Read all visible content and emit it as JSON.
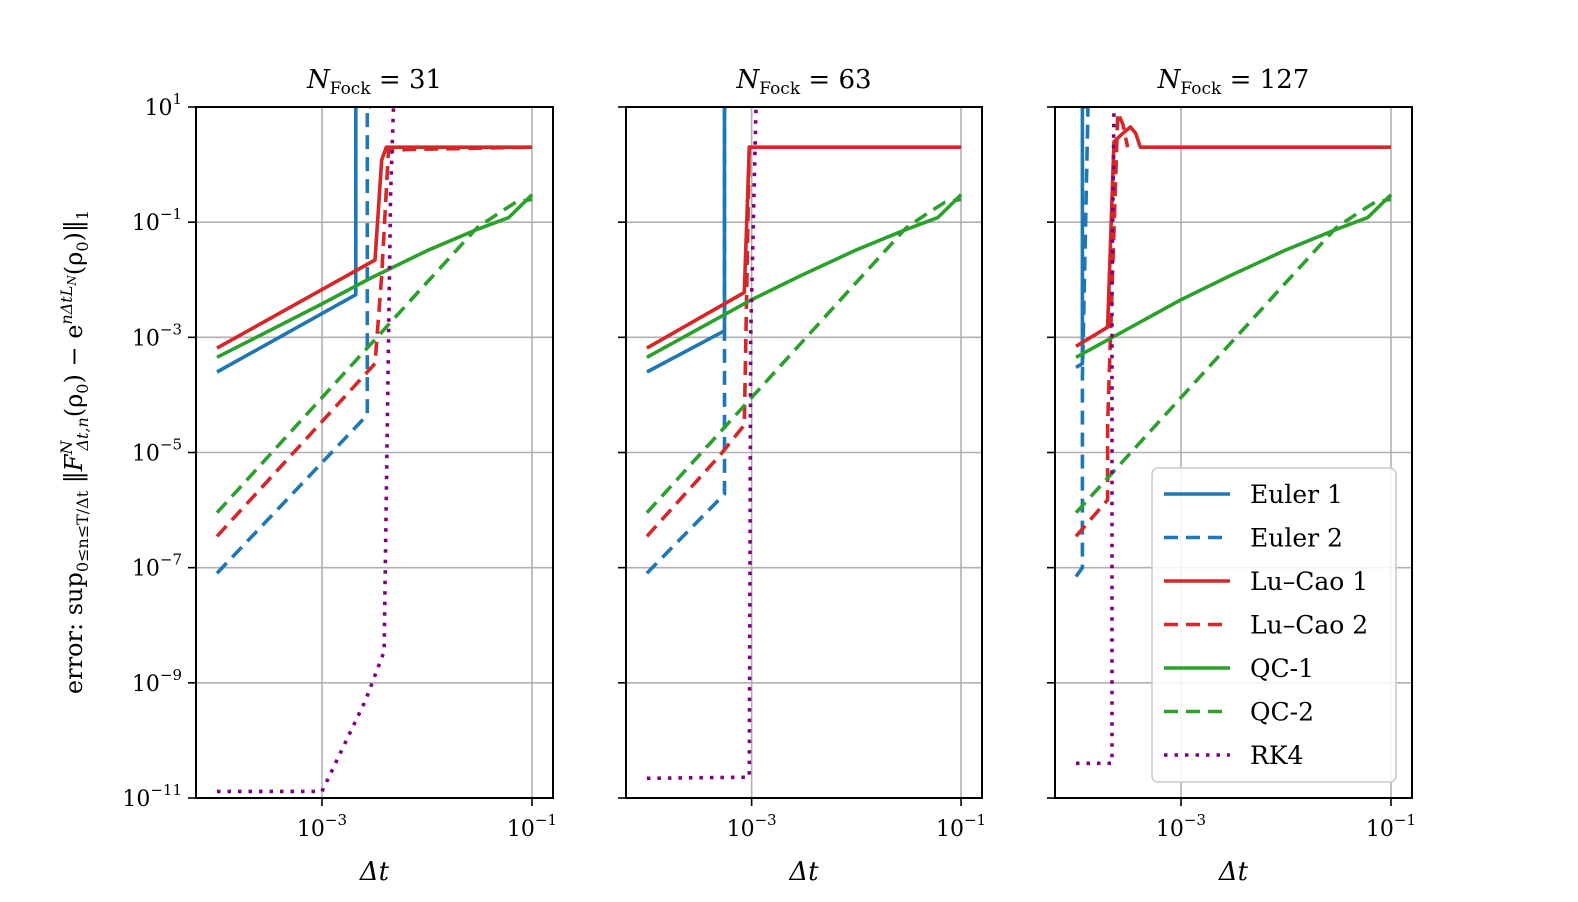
{
  "figure": {
    "ylabel": "error: sup_{0≤n≤T/Δt} ‖F^N_{Δt,n}(ρ0) − e^{nΔtL_N}(ρ0)‖_1",
    "ylabel_parts": {
      "prefix": "error: sup",
      "sub": "0≤n≤T/Δt",
      "norm_open": " ‖",
      "F": "F",
      "F_sup": "N",
      "F_sub": "Δt,n",
      "mid": "(ρ",
      "rho_sub": "0",
      "minus": ") − e",
      "exp_sup": "nΔtL",
      "exp_sub": "N",
      "tail": "(ρ",
      "tail_sub": "0",
      "close": ")‖",
      "norm_sub": "1"
    }
  },
  "chart_data": [
    {
      "type": "line",
      "title": "N_Fock = 31",
      "title_main": "N",
      "title_sub": "Fock",
      "title_rest": " = 31",
      "xlabel": "Δt",
      "xscale": "log",
      "yscale": "log",
      "xlim": [
        6.31e-05,
        0.1585
      ],
      "ylim": [
        1e-11,
        10
      ],
      "grid": true,
      "series": [
        {
          "name": "Euler 1",
          "style": "solid",
          "color": "#1f77b4",
          "x": [
            0.0001,
            0.0021,
            0.0021,
            0.0022
          ],
          "y": [
            0.00025,
            0.0055,
            10,
            10
          ]
        },
        {
          "name": "Euler 2",
          "style": "dashed",
          "color": "#1f77b4",
          "x": [
            0.0001,
            0.0027,
            0.0027,
            0.0029
          ],
          "y": [
            8e-08,
            4.5e-05,
            10,
            10
          ]
        },
        {
          "name": "Lu–Cao 1",
          "style": "solid",
          "color": "#d62728",
          "x": [
            0.0001,
            0.0032,
            0.0037,
            0.0041,
            0.1
          ],
          "y": [
            0.00065,
            0.022,
            1.2,
            2,
            2
          ]
        },
        {
          "name": "Lu–Cao 2",
          "style": "dashed",
          "color": "#d62728",
          "x": [
            0.0001,
            0.0032,
            0.0037,
            0.0043,
            0.1
          ],
          "y": [
            3.5e-07,
            0.00035,
            0.012,
            1.8,
            2
          ]
        },
        {
          "name": "QC-1",
          "style": "solid",
          "color": "#2ca02c",
          "x": [
            0.0001,
            0.001,
            0.003,
            0.01,
            0.03,
            0.06,
            0.1
          ],
          "y": [
            0.00045,
            0.0038,
            0.011,
            0.032,
            0.075,
            0.12,
            0.3
          ]
        },
        {
          "name": "QC-2",
          "style": "dashed",
          "color": "#2ca02c",
          "x": [
            0.0001,
            0.001,
            0.01,
            0.03,
            0.05,
            0.07,
            0.1
          ],
          "y": [
            9e-07,
            9e-05,
            0.009,
            0.08,
            0.15,
            0.22,
            0.25
          ]
        },
        {
          "name": "RK4",
          "style": "dotted",
          "color": "#800080",
          "x": [
            0.0001,
            0.001,
            0.0026,
            0.0039,
            0.0045,
            0.0048
          ],
          "y": [
            1.3e-11,
            1.3e-11,
            5e-10,
            3.5e-09,
            0.3,
            10
          ]
        }
      ]
    },
    {
      "type": "line",
      "title": "N_Fock = 63",
      "title_main": "N",
      "title_sub": "Fock",
      "title_rest": " = 63",
      "xlabel": "Δt",
      "xscale": "log",
      "yscale": "log",
      "xlim": [
        6.31e-05,
        0.1585
      ],
      "ylim": [
        1e-11,
        10
      ],
      "grid": true,
      "series": [
        {
          "name": "Euler 1",
          "style": "solid",
          "color": "#1f77b4",
          "x": [
            0.0001,
            0.00055,
            0.00055,
            0.00058
          ],
          "y": [
            0.00025,
            0.0013,
            10,
            10
          ]
        },
        {
          "name": "Euler 2",
          "style": "dashed",
          "color": "#1f77b4",
          "x": [
            0.0001,
            0.00055,
            0.00055,
            0.00058
          ],
          "y": [
            8e-08,
            1.9e-06,
            10,
            10
          ]
        },
        {
          "name": "Lu–Cao 1",
          "style": "solid",
          "color": "#d62728",
          "x": [
            0.0001,
            0.00085,
            0.00095,
            0.1
          ],
          "y": [
            0.00065,
            0.006,
            2,
            2
          ]
        },
        {
          "name": "Lu–Cao 2",
          "style": "dashed",
          "color": "#d62728",
          "x": [
            0.0001,
            0.0005,
            0.00085,
            0.00095,
            0.00098
          ],
          "y": [
            3.5e-07,
            9e-06,
            3e-05,
            2,
            2
          ]
        },
        {
          "name": "QC-1",
          "style": "solid",
          "color": "#2ca02c",
          "x": [
            0.0001,
            0.001,
            0.003,
            0.01,
            0.03,
            0.06,
            0.1
          ],
          "y": [
            0.00045,
            0.0045,
            0.012,
            0.033,
            0.075,
            0.12,
            0.3
          ]
        },
        {
          "name": "QC-2",
          "style": "dashed",
          "color": "#2ca02c",
          "x": [
            0.0001,
            0.001,
            0.01,
            0.03,
            0.05,
            0.07,
            0.1
          ],
          "y": [
            9e-07,
            9e-05,
            0.009,
            0.08,
            0.15,
            0.22,
            0.25
          ]
        },
        {
          "name": "RK4",
          "style": "dotted",
          "color": "#800080",
          "x": [
            0.0001,
            0.00095,
            0.00098,
            0.0011
          ],
          "y": [
            2.2e-11,
            2.3e-11,
            0.001,
            10
          ]
        }
      ]
    },
    {
      "type": "line",
      "title": "N_Fock = 127",
      "title_main": "N",
      "title_sub": "Fock",
      "title_rest": " = 127",
      "xlabel": "Δt",
      "xscale": "log",
      "yscale": "log",
      "xlim": [
        6.31e-05,
        0.1585
      ],
      "ylim": [
        1e-11,
        10
      ],
      "grid": true,
      "series": [
        {
          "name": "Euler 1",
          "style": "solid",
          "color": "#1f77b4",
          "x": [
            0.0001,
            0.000115,
            0.000115,
            0.00013
          ],
          "y": [
            0.0003,
            0.00035,
            10,
            10
          ]
        },
        {
          "name": "Euler 2",
          "style": "dashed",
          "color": "#1f77b4",
          "x": [
            0.0001,
            0.000115,
            0.000115,
            0.00013
          ],
          "y": [
            7e-08,
            1e-07,
            0.0002,
            10
          ]
        },
        {
          "name": "Lu–Cao 1",
          "style": "solid",
          "color": "#d62728",
          "x": [
            0.0001,
            0.0002,
            0.00023,
            0.00028,
            0.00033,
            0.00037,
            0.00041,
            0.00046,
            0.1
          ],
          "y": [
            0.0007,
            0.0015,
            2.5,
            3.5,
            4.5,
            3.5,
            2,
            2,
            2
          ]
        },
        {
          "name": "Lu–Cao 2",
          "style": "dashed",
          "color": "#d62728",
          "x": [
            0.0001,
            0.0002,
            0.0002,
            0.00025,
            0.00028,
            0.00031
          ],
          "y": [
            3.5e-07,
            1.5e-06,
            3e-05,
            8,
            5,
            2
          ]
        },
        {
          "name": "QC-1",
          "style": "solid",
          "color": "#2ca02c",
          "x": [
            0.0001,
            0.001,
            0.003,
            0.01,
            0.03,
            0.06,
            0.1
          ],
          "y": [
            0.00045,
            0.0045,
            0.012,
            0.033,
            0.075,
            0.12,
            0.3
          ]
        },
        {
          "name": "QC-2",
          "style": "dashed",
          "color": "#2ca02c",
          "x": [
            0.0001,
            0.001,
            0.01,
            0.03,
            0.05,
            0.07,
            0.1
          ],
          "y": [
            9e-07,
            9e-05,
            0.009,
            0.08,
            0.15,
            0.22,
            0.25
          ]
        },
        {
          "name": "RK4",
          "style": "dotted",
          "color": "#800080",
          "x": [
            0.0001,
            0.00022,
            0.00022,
            0.00023
          ],
          "y": [
            4e-11,
            4e-11,
            0.01,
            10
          ]
        }
      ]
    }
  ],
  "axes": {
    "yticks": [
      {
        "base": "10",
        "exp": "1",
        "value": 10
      },
      {
        "base": "10",
        "exp": "−1",
        "value": 0.1
      },
      {
        "base": "10",
        "exp": "−3",
        "value": 0.001
      },
      {
        "base": "10",
        "exp": "−5",
        "value": 1e-05
      },
      {
        "base": "10",
        "exp": "−7",
        "value": 1e-07
      },
      {
        "base": "10",
        "exp": "−9",
        "value": 1e-09
      },
      {
        "base": "10",
        "exp": "−11",
        "value": 1e-11
      }
    ],
    "xticks": [
      {
        "base": "10",
        "exp": "−3",
        "value": 0.001
      },
      {
        "base": "10",
        "exp": "−1",
        "value": 0.1
      }
    ]
  },
  "legend": {
    "placement": "lower-right of third panel",
    "items": [
      {
        "label": "Euler 1",
        "color": "#1f77b4",
        "style": "solid"
      },
      {
        "label": "Euler 2",
        "color": "#1f77b4",
        "style": "dashed"
      },
      {
        "label": "Lu–Cao 1",
        "color": "#d62728",
        "style": "solid"
      },
      {
        "label": "Lu–Cao 2",
        "color": "#d62728",
        "style": "dashed"
      },
      {
        "label": "QC-1",
        "color": "#2ca02c",
        "style": "solid"
      },
      {
        "label": "QC-2",
        "color": "#2ca02c",
        "style": "dashed"
      },
      {
        "label": "RK4",
        "color": "#800080",
        "style": "dotted"
      }
    ]
  }
}
